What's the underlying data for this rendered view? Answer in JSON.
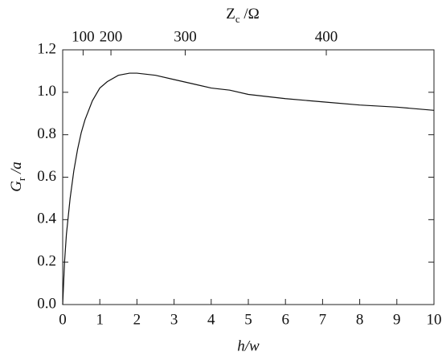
{
  "chart_data": {
    "type": "line",
    "xlabel": "h/w",
    "ylabel": [
      "G",
      "r",
      " /a"
    ],
    "x2label": [
      "Z",
      "c",
      " /Ω"
    ],
    "x": [
      0,
      0.05,
      0.1,
      0.2,
      0.3,
      0.4,
      0.5,
      0.6,
      0.8,
      1.0,
      1.2,
      1.5,
      1.8,
      2.0,
      2.5,
      3,
      3.5,
      4,
      4.5,
      5,
      6,
      7,
      8,
      9,
      10
    ],
    "series": [
      {
        "color": "#111111",
        "values": [
          0.0,
          0.2,
          0.33,
          0.5,
          0.63,
          0.73,
          0.81,
          0.87,
          0.96,
          1.02,
          1.05,
          1.08,
          1.09,
          1.09,
          1.08,
          1.06,
          1.04,
          1.02,
          1.01,
          0.99,
          0.97,
          0.955,
          0.94,
          0.93,
          0.915
        ]
      }
    ],
    "xlim": [
      0,
      10
    ],
    "ylim": [
      0,
      1.2
    ],
    "xticks": [
      0,
      1,
      2,
      3,
      4,
      5,
      6,
      7,
      8,
      9,
      10
    ],
    "yticks": [
      {
        "value": 0,
        "label": "0.0"
      },
      0.2,
      0.4,
      0.6,
      0.8,
      {
        "value": 1,
        "label": "1.0"
      },
      1.2
    ],
    "x2ticks": [
      {
        "value": 0.55,
        "label": "100"
      },
      {
        "value": 1.3,
        "label": "200"
      },
      {
        "value": 3.3,
        "label": "300"
      },
      {
        "value": 7.1,
        "label": "400"
      }
    ]
  }
}
